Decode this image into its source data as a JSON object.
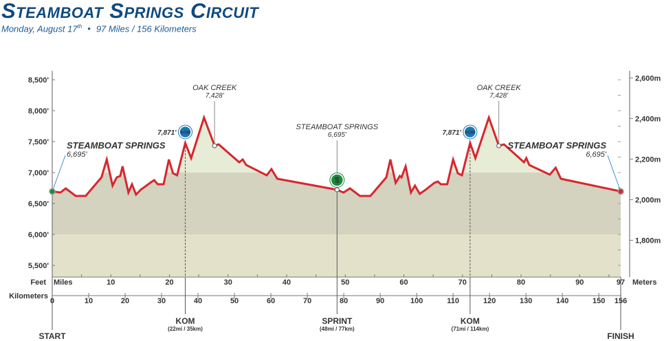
{
  "header": {
    "title": "Steamboat Springs Circuit",
    "date": "Monday, August 17",
    "date_suffix": "th",
    "distance": "97 Miles / 156 Kilometers"
  },
  "colors": {
    "route": "#d7262e",
    "title": "#0f4a80",
    "kom": "#1b77b5",
    "sprint": "#1a8a3c",
    "finish": "#d7262e",
    "band_high": "#e6ecd6",
    "band_mid": "#d3d3bf",
    "band_low": "#e3e1c9"
  },
  "chart_data": {
    "type": "area",
    "title": "Steamboat Springs Circuit",
    "x_unit": "miles",
    "y_unit": "feet",
    "xlim": [
      0,
      97
    ],
    "ylim": [
      5300,
      8600
    ],
    "points": [
      [
        0,
        6695
      ],
      [
        1.4,
        6678
      ],
      [
        2.3,
        6744
      ],
      [
        4.0,
        6622
      ],
      [
        5.7,
        6622
      ],
      [
        8.4,
        6922
      ],
      [
        9.3,
        7211
      ],
      [
        10.3,
        6789
      ],
      [
        11.0,
        6922
      ],
      [
        11.6,
        6944
      ],
      [
        12.0,
        7100
      ],
      [
        13.0,
        6678
      ],
      [
        13.6,
        6811
      ],
      [
        14.3,
        6644
      ],
      [
        15.1,
        6722
      ],
      [
        16.7,
        6833
      ],
      [
        17.4,
        6878
      ],
      [
        18.0,
        6811
      ],
      [
        19.0,
        6811
      ],
      [
        19.9,
        7211
      ],
      [
        20.6,
        6989
      ],
      [
        21.3,
        6956
      ],
      [
        22.7,
        7478
      ],
      [
        23.7,
        7233
      ],
      [
        25.9,
        7889
      ],
      [
        27.7,
        7433
      ],
      [
        28.4,
        7456
      ],
      [
        31.9,
        7167
      ],
      [
        32.5,
        7211
      ],
      [
        33.1,
        7122
      ],
      [
        36.6,
        6956
      ],
      [
        37.4,
        7056
      ],
      [
        38.4,
        6900
      ],
      [
        48.6,
        6722
      ],
      [
        49.7,
        6678
      ],
      [
        50.8,
        6744
      ],
      [
        52.5,
        6622
      ],
      [
        54.3,
        6622
      ],
      [
        57.0,
        6922
      ],
      [
        57.7,
        7211
      ],
      [
        58.6,
        6833
      ],
      [
        59.3,
        6944
      ],
      [
        59.6,
        6922
      ],
      [
        60.3,
        7100
      ],
      [
        61.2,
        6678
      ],
      [
        61.9,
        6789
      ],
      [
        62.7,
        6656
      ],
      [
        63.7,
        6722
      ],
      [
        65.2,
        6833
      ],
      [
        65.8,
        6856
      ],
      [
        66.3,
        6811
      ],
      [
        67.4,
        6811
      ],
      [
        68.4,
        7211
      ],
      [
        69.2,
        6989
      ],
      [
        69.9,
        6956
      ],
      [
        71.3,
        7478
      ],
      [
        72.2,
        7233
      ],
      [
        74.5,
        7889
      ],
      [
        76.2,
        7433
      ],
      [
        77.1,
        7456
      ],
      [
        80.5,
        7167
      ],
      [
        80.9,
        7233
      ],
      [
        81.4,
        7122
      ],
      [
        84.9,
        6967
      ],
      [
        85.9,
        7078
      ],
      [
        86.8,
        6900
      ],
      [
        97,
        6695
      ]
    ],
    "y_ticks_feet": [
      {
        "v": 8500,
        "label": "8,500'"
      },
      {
        "v": 8000,
        "label": "8,000'"
      },
      {
        "v": 7500,
        "label": "7,500'"
      },
      {
        "v": 7000,
        "label": "7,000'"
      },
      {
        "v": 6500,
        "label": "6,500'"
      },
      {
        "v": 6000,
        "label": "6,000'"
      },
      {
        "v": 5500,
        "label": "5,500'"
      }
    ],
    "y_ticks_meters": [
      {
        "v": 2600,
        "label": "2,600m"
      },
      {
        "v": 2400,
        "label": "2,400m"
      },
      {
        "v": 2200,
        "label": "2,200m"
      },
      {
        "v": 2000,
        "label": "2,000m"
      },
      {
        "v": 1800,
        "label": "1,800m"
      }
    ],
    "x_ticks_miles": [
      {
        "v": 10,
        "label": "10"
      },
      {
        "v": 20,
        "label": "20"
      },
      {
        "v": 30,
        "label": "30"
      },
      {
        "v": 40,
        "label": "40"
      },
      {
        "v": 50,
        "label": "50"
      },
      {
        "v": 60,
        "label": "60"
      },
      {
        "v": 70,
        "label": "70"
      },
      {
        "v": 80,
        "label": "80"
      },
      {
        "v": 90,
        "label": "90"
      },
      {
        "v": 97,
        "label": "97"
      }
    ],
    "x_ticks_km": [
      {
        "v": 0,
        "label": "0"
      },
      {
        "v": 10,
        "label": "10"
      },
      {
        "v": 20,
        "label": "20"
      },
      {
        "v": 30,
        "label": "30"
      },
      {
        "v": 40,
        "label": "40"
      },
      {
        "v": 50,
        "label": "50"
      },
      {
        "v": 60,
        "label": "60"
      },
      {
        "v": 70,
        "label": "70"
      },
      {
        "v": 80,
        "label": "80"
      },
      {
        "v": 90,
        "label": "90"
      },
      {
        "v": 100,
        "label": "100"
      },
      {
        "v": 110,
        "label": "110"
      },
      {
        "v": 120,
        "label": "120"
      },
      {
        "v": 130,
        "label": "130"
      },
      {
        "v": 140,
        "label": "140"
      },
      {
        "v": 150,
        "label": "150"
      },
      {
        "v": 156,
        "label": "156"
      }
    ],
    "axis_labels": {
      "feet": "Feet",
      "miles": "Miles",
      "meters": "Meters",
      "kilometers": "Kilometers"
    },
    "places": [
      {
        "name": "Steamboat Springs",
        "elev": "6,695'",
        "mile": 0,
        "ft": 6695,
        "style": "start"
      },
      {
        "name": "Oak Creek",
        "elev": "7,428'",
        "mile": 27.7,
        "ft": 7433,
        "style": "town"
      },
      {
        "name": "Steamboat Springs",
        "elev": "6,695'",
        "mile": 48.6,
        "ft": 6722,
        "style": "town"
      },
      {
        "name": "Oak Creek",
        "elev": "7,428'",
        "mile": 76.2,
        "ft": 7433,
        "style": "town"
      },
      {
        "name": "Steamboat Springs",
        "elev": "6,695'",
        "mile": 97,
        "ft": 6695,
        "style": "finish"
      }
    ],
    "markers": [
      {
        "type": "kom",
        "label": "KOM",
        "detail": "(22mi / 35km)",
        "mile": 22.7,
        "ft": 7478,
        "elev": "7,871'",
        "icon": "KOM"
      },
      {
        "type": "sprint",
        "label": "SPRINT",
        "detail": "(48mi / 77km)",
        "mile": 48.6,
        "ft": 6722,
        "icon": "$"
      },
      {
        "type": "kom",
        "label": "KOM",
        "detail": "(71mi / 114km)",
        "mile": 71.3,
        "ft": 7478,
        "elev": "7,871'",
        "icon": "KOM"
      }
    ],
    "start_label": "START",
    "finish_label": "FINISH"
  }
}
